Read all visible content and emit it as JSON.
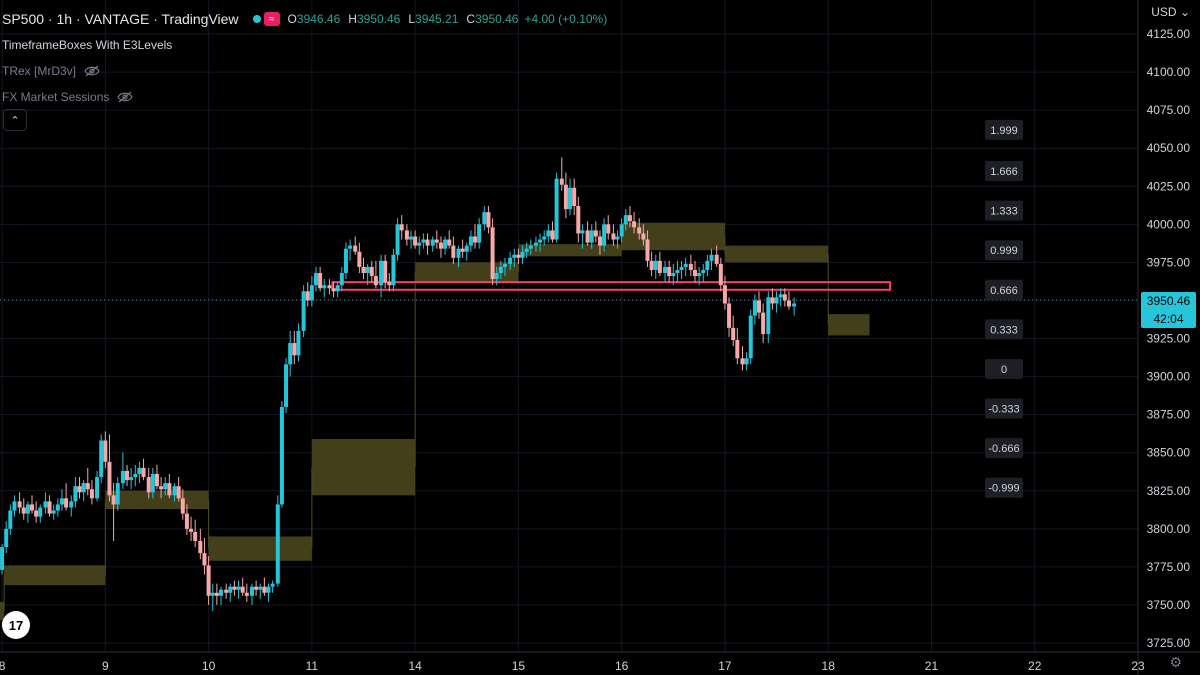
{
  "header": {
    "symbol": "SP500 · 1h · VANTAGE · TradingView",
    "open_label": "O",
    "open": "3946.46",
    "high_label": "H",
    "high": "3950.46",
    "low_label": "L",
    "low": "3945.21",
    "close_label": "C",
    "close": "3950.46",
    "change": "+4.00 (+0.10%)"
  },
  "indicators": [
    {
      "label": "TimeframeBoxes With E3Levels"
    },
    {
      "label": "TRex [MrD3v]"
    },
    {
      "label": "FX Market Sessions"
    }
  ],
  "currency": "USD",
  "collapse_glyph": "⌃",
  "settings_icon": "gear-icon",
  "logo_text": "17",
  "last_price": "3950.46",
  "countdown": "42:04",
  "colors": {
    "up": "#26c6da",
    "down": "#f7a8a8",
    "box": "#4f4a1e",
    "zone": "#ff3b6e",
    "grid": "#131722",
    "text": "#d1d4dc",
    "dim": "#787b86"
  },
  "chart_data": {
    "type": "candlestick",
    "y_axis_ticks": [
      "4125.00",
      "4100.00",
      "4075.00",
      "4050.00",
      "4025.00",
      "4000.00",
      "3975.00",
      "3950.00",
      "3925.00",
      "3900.00",
      "3875.00",
      "3850.00",
      "3825.00",
      "3800.00",
      "3775.00",
      "3750.00",
      "3725.00"
    ],
    "ylim": [
      3725,
      4125
    ],
    "x_axis_ticks": [
      {
        "label": "8",
        "x": 0
      },
      {
        "label": "9",
        "x": 1
      },
      {
        "label": "10",
        "x": 2
      },
      {
        "label": "11",
        "x": 3
      },
      {
        "label": "14",
        "x": 4
      },
      {
        "label": "15",
        "x": 5
      },
      {
        "label": "16",
        "x": 6
      },
      {
        "label": "17",
        "x": 7
      },
      {
        "label": "18",
        "x": 8
      },
      {
        "label": "21",
        "x": 9
      },
      {
        "label": "22",
        "x": 10
      },
      {
        "label": "23",
        "x": 11
      }
    ],
    "xlim": [
      -0.02,
      11.0
    ],
    "level_labels": [
      {
        "label": "1.999",
        "price": 4062
      },
      {
        "label": "1.666",
        "price": 4035
      },
      {
        "label": "1.333",
        "price": 4009
      },
      {
        "label": "0.999",
        "price": 3983
      },
      {
        "label": "0.666",
        "price": 3957
      },
      {
        "label": "0.333",
        "price": 3931
      },
      {
        "label": "0",
        "price": 3905
      },
      {
        "label": "-0.333",
        "price": 3879
      },
      {
        "label": "-0.666",
        "price": 3853
      },
      {
        "label": "-0.999",
        "price": 3827
      }
    ],
    "boxes": [
      {
        "x0": -0.02,
        "x1": 0.02,
        "top": 3752,
        "bottom": 3740
      },
      {
        "x0": 0.02,
        "x1": 1.0,
        "top": 3776,
        "bottom": 3763
      },
      {
        "x0": 1.0,
        "x1": 2.0,
        "top": 3825,
        "bottom": 3813
      },
      {
        "x0": 2.0,
        "x1": 3.0,
        "top": 3795,
        "bottom": 3779
      },
      {
        "x0": 3.0,
        "x1": 4.0,
        "top": 3859,
        "bottom": 3822
      },
      {
        "x0": 4.0,
        "x1": 5.0,
        "top": 3975,
        "bottom": 3962
      },
      {
        "x0": 5.0,
        "x1": 6.0,
        "top": 3987,
        "bottom": 3979
      },
      {
        "x0": 6.0,
        "x1": 7.0,
        "top": 4001,
        "bottom": 3983
      },
      {
        "x0": 7.0,
        "x1": 8.0,
        "top": 3986,
        "bottom": 3975
      },
      {
        "x0": 8.0,
        "x1": 8.4,
        "top": 3941,
        "bottom": 3927
      }
    ],
    "zone": {
      "x0": 3.2,
      "x1": 8.6,
      "top": 3962,
      "bottom": 3957
    },
    "last_price_value": 3950.46,
    "candles": [
      [
        0.0,
        3773,
        3790,
        3770,
        3788
      ],
      [
        0.04,
        3788,
        3805,
        3784,
        3800
      ],
      [
        0.08,
        3800,
        3816,
        3796,
        3812
      ],
      [
        0.12,
        3812,
        3822,
        3808,
        3818
      ],
      [
        0.17,
        3818,
        3824,
        3810,
        3814
      ],
      [
        0.21,
        3814,
        3820,
        3806,
        3810
      ],
      [
        0.25,
        3810,
        3818,
        3804,
        3816
      ],
      [
        0.29,
        3816,
        3822,
        3810,
        3812
      ],
      [
        0.33,
        3812,
        3818,
        3804,
        3808
      ],
      [
        0.37,
        3808,
        3816,
        3804,
        3814
      ],
      [
        0.42,
        3814,
        3824,
        3810,
        3818
      ],
      [
        0.46,
        3818,
        3822,
        3808,
        3810
      ],
      [
        0.5,
        3810,
        3816,
        3806,
        3812
      ],
      [
        0.54,
        3812,
        3820,
        3808,
        3816
      ],
      [
        0.58,
        3816,
        3826,
        3812,
        3820
      ],
      [
        0.62,
        3820,
        3830,
        3812,
        3814
      ],
      [
        0.67,
        3814,
        3822,
        3808,
        3818
      ],
      [
        0.71,
        3818,
        3834,
        3814,
        3828
      ],
      [
        0.75,
        3828,
        3834,
        3820,
        3824
      ],
      [
        0.79,
        3824,
        3832,
        3818,
        3830
      ],
      [
        0.83,
        3830,
        3840,
        3822,
        3826
      ],
      [
        0.87,
        3826,
        3832,
        3816,
        3820
      ],
      [
        0.92,
        3820,
        3838,
        3818,
        3834
      ],
      [
        0.96,
        3834,
        3862,
        3830,
        3858
      ],
      [
        1.0,
        3858,
        3864,
        3840,
        3844
      ],
      [
        1.04,
        3844,
        3862,
        3818,
        3822
      ],
      [
        1.08,
        3822,
        3830,
        3792,
        3816
      ],
      [
        1.12,
        3816,
        3834,
        3812,
        3830
      ],
      [
        1.17,
        3830,
        3850,
        3826,
        3838
      ],
      [
        1.21,
        3838,
        3842,
        3828,
        3832
      ],
      [
        1.25,
        3832,
        3840,
        3826,
        3834
      ],
      [
        1.29,
        3834,
        3842,
        3828,
        3836
      ],
      [
        1.33,
        3836,
        3844,
        3830,
        3840
      ],
      [
        1.37,
        3840,
        3846,
        3832,
        3834
      ],
      [
        1.42,
        3834,
        3840,
        3820,
        3824
      ],
      [
        1.46,
        3824,
        3840,
        3820,
        3836
      ],
      [
        1.5,
        3836,
        3842,
        3826,
        3828
      ],
      [
        1.54,
        3828,
        3834,
        3820,
        3826
      ],
      [
        1.58,
        3826,
        3834,
        3822,
        3830
      ],
      [
        1.62,
        3830,
        3836,
        3820,
        3822
      ],
      [
        1.67,
        3822,
        3830,
        3818,
        3828
      ],
      [
        1.71,
        3828,
        3834,
        3818,
        3820
      ],
      [
        1.75,
        3820,
        3826,
        3806,
        3810
      ],
      [
        1.79,
        3810,
        3816,
        3796,
        3800
      ],
      [
        1.83,
        3800,
        3808,
        3792,
        3798
      ],
      [
        1.87,
        3798,
        3806,
        3788,
        3792
      ],
      [
        1.92,
        3792,
        3800,
        3780,
        3784
      ],
      [
        1.96,
        3784,
        3794,
        3770,
        3776
      ],
      [
        2.0,
        3776,
        3782,
        3750,
        3756
      ],
      [
        2.04,
        3756,
        3764,
        3746,
        3758
      ],
      [
        2.08,
        3758,
        3764,
        3750,
        3756
      ],
      [
        2.12,
        3756,
        3762,
        3750,
        3760
      ],
      [
        2.17,
        3760,
        3764,
        3754,
        3758
      ],
      [
        2.21,
        3758,
        3764,
        3752,
        3762
      ],
      [
        2.25,
        3762,
        3766,
        3756,
        3760
      ],
      [
        2.29,
        3760,
        3766,
        3754,
        3762
      ],
      [
        2.33,
        3762,
        3768,
        3756,
        3758
      ],
      [
        2.37,
        3758,
        3764,
        3752,
        3756
      ],
      [
        2.42,
        3756,
        3764,
        3750,
        3762
      ],
      [
        2.46,
        3762,
        3766,
        3756,
        3760
      ],
      [
        2.5,
        3760,
        3764,
        3754,
        3762
      ],
      [
        2.54,
        3762,
        3768,
        3756,
        3758
      ],
      [
        2.58,
        3758,
        3764,
        3752,
        3762
      ],
      [
        2.62,
        3762,
        3766,
        3758,
        3764
      ],
      [
        2.67,
        3764,
        3822,
        3762,
        3816
      ],
      [
        2.71,
        3816,
        3884,
        3814,
        3880
      ],
      [
        2.75,
        3880,
        3912,
        3876,
        3908
      ],
      [
        2.79,
        3908,
        3930,
        3900,
        3922
      ],
      [
        2.83,
        3922,
        3930,
        3908,
        3914
      ],
      [
        2.87,
        3914,
        3935,
        3910,
        3930
      ],
      [
        2.92,
        3930,
        3960,
        3926,
        3956
      ],
      [
        2.96,
        3956,
        3962,
        3946,
        3950
      ],
      [
        3.0,
        3950,
        3966,
        3946,
        3960
      ],
      [
        3.04,
        3960,
        3972,
        3956,
        3968
      ],
      [
        3.08,
        3968,
        3972,
        3956,
        3958
      ],
      [
        3.12,
        3958,
        3964,
        3952,
        3960
      ],
      [
        3.17,
        3960,
        3964,
        3954,
        3958
      ],
      [
        3.21,
        3958,
        3962,
        3952,
        3956
      ],
      [
        3.25,
        3956,
        3962,
        3952,
        3960
      ],
      [
        3.29,
        3960,
        3972,
        3956,
        3968
      ],
      [
        3.33,
        3968,
        3988,
        3964,
        3984
      ],
      [
        3.37,
        3984,
        3990,
        3976,
        3986
      ],
      [
        3.42,
        3986,
        3992,
        3980,
        3982
      ],
      [
        3.46,
        3982,
        3988,
        3968,
        3972
      ],
      [
        3.5,
        3972,
        3978,
        3964,
        3968
      ],
      [
        3.54,
        3968,
        3974,
        3960,
        3972
      ],
      [
        3.58,
        3972,
        3976,
        3962,
        3966
      ],
      [
        3.62,
        3966,
        3976,
        3958,
        3960
      ],
      [
        3.67,
        3960,
        3980,
        3952,
        3976
      ],
      [
        3.71,
        3976,
        3980,
        3958,
        3962
      ],
      [
        3.75,
        3962,
        3968,
        3956,
        3960
      ],
      [
        3.79,
        3960,
        3984,
        3956,
        3980
      ],
      [
        3.83,
        3980,
        4004,
        3976,
        4000
      ],
      [
        3.87,
        4000,
        4006,
        3990,
        3996
      ],
      [
        3.92,
        3996,
        4000,
        3986,
        3990
      ],
      [
        3.96,
        3990,
        3996,
        3984,
        3992
      ],
      [
        4.0,
        3992,
        3996,
        3984,
        3986
      ],
      [
        4.04,
        3986,
        3992,
        3980,
        3988
      ],
      [
        4.08,
        3988,
        3994,
        3984,
        3990
      ],
      [
        4.12,
        3990,
        3994,
        3980,
        3986
      ],
      [
        4.17,
        3986,
        3992,
        3982,
        3990
      ],
      [
        4.21,
        3990,
        3996,
        3984,
        3988
      ],
      [
        4.25,
        3988,
        3992,
        3978,
        3984
      ],
      [
        4.29,
        3984,
        3992,
        3980,
        3990
      ],
      [
        4.33,
        3990,
        3996,
        3984,
        3986
      ],
      [
        4.37,
        3986,
        3992,
        3974,
        3978
      ],
      [
        4.42,
        3978,
        3986,
        3972,
        3984
      ],
      [
        4.46,
        3984,
        3990,
        3978,
        3982
      ],
      [
        4.5,
        3982,
        3988,
        3976,
        3986
      ],
      [
        4.54,
        3986,
        3996,
        3982,
        3992
      ],
      [
        4.58,
        3992,
        4000,
        3984,
        3988
      ],
      [
        4.62,
        3988,
        4004,
        3984,
        4000
      ],
      [
        4.67,
        4000,
        4012,
        3996,
        4008
      ],
      [
        4.71,
        4008,
        4012,
        3994,
        3998
      ],
      [
        4.75,
        3998,
        4004,
        3960,
        3964
      ],
      [
        4.79,
        3964,
        3972,
        3960,
        3968
      ],
      [
        4.83,
        3968,
        3976,
        3964,
        3972
      ],
      [
        4.87,
        3972,
        3978,
        3966,
        3974
      ],
      [
        4.92,
        3974,
        3982,
        3970,
        3978
      ],
      [
        4.96,
        3978,
        3984,
        3972,
        3980
      ],
      [
        5.0,
        3980,
        3984,
        3974,
        3978
      ],
      [
        5.04,
        3978,
        3986,
        3974,
        3982
      ],
      [
        5.08,
        3982,
        3988,
        3978,
        3984
      ],
      [
        5.12,
        3984,
        3990,
        3980,
        3986
      ],
      [
        5.17,
        3986,
        3992,
        3982,
        3988
      ],
      [
        5.21,
        3988,
        3994,
        3982,
        3990
      ],
      [
        5.25,
        3990,
        3996,
        3986,
        3992
      ],
      [
        5.29,
        3992,
        4000,
        3988,
        3996
      ],
      [
        5.33,
        3996,
        4002,
        3988,
        3990
      ],
      [
        5.37,
        3990,
        4034,
        3988,
        4030
      ],
      [
        5.42,
        4030,
        4044,
        4022,
        4026
      ],
      [
        5.46,
        4026,
        4034,
        4004,
        4010
      ],
      [
        5.5,
        4010,
        4030,
        4006,
        4024
      ],
      [
        5.54,
        4024,
        4030,
        4006,
        4012
      ],
      [
        5.58,
        4012,
        4018,
        3988,
        3994
      ],
      [
        5.62,
        3994,
        4000,
        3984,
        3996
      ],
      [
        5.67,
        3996,
        4002,
        3986,
        3988
      ],
      [
        5.71,
        3988,
        4000,
        3984,
        3996
      ],
      [
        5.75,
        3996,
        4002,
        3988,
        3992
      ],
      [
        5.79,
        3992,
        3996,
        3980,
        3986
      ],
      [
        5.83,
        3986,
        4004,
        3982,
        4000
      ],
      [
        5.87,
        4000,
        4006,
        3990,
        3994
      ],
      [
        5.92,
        3994,
        4000,
        3986,
        3990
      ],
      [
        5.96,
        3990,
        3996,
        3984,
        3992
      ],
      [
        6.0,
        3992,
        4004,
        3988,
        4000
      ],
      [
        6.04,
        4000,
        4010,
        3996,
        4006
      ],
      [
        6.08,
        4006,
        4012,
        3998,
        4002
      ],
      [
        6.12,
        4002,
        4008,
        3994,
        3998
      ],
      [
        6.17,
        3998,
        4004,
        3990,
        3994
      ],
      [
        6.21,
        3994,
        4000,
        3986,
        3990
      ],
      [
        6.25,
        3990,
        3996,
        3972,
        3976
      ],
      [
        6.29,
        3976,
        3982,
        3966,
        3970
      ],
      [
        6.33,
        3970,
        3980,
        3964,
        3976
      ],
      [
        6.37,
        3976,
        3982,
        3966,
        3968
      ],
      [
        6.42,
        3968,
        3976,
        3962,
        3972
      ],
      [
        6.46,
        3972,
        3976,
        3962,
        3966
      ],
      [
        6.5,
        3966,
        3974,
        3960,
        3968
      ],
      [
        6.54,
        3968,
        3976,
        3962,
        3970
      ],
      [
        6.58,
        3970,
        3976,
        3964,
        3972
      ],
      [
        6.62,
        3972,
        3978,
        3966,
        3974
      ],
      [
        6.67,
        3974,
        3980,
        3966,
        3970
      ],
      [
        6.71,
        3970,
        3976,
        3962,
        3966
      ],
      [
        6.75,
        3966,
        3972,
        3960,
        3968
      ],
      [
        6.79,
        3968,
        3974,
        3962,
        3970
      ],
      [
        6.83,
        3970,
        3980,
        3966,
        3976
      ],
      [
        6.87,
        3976,
        3984,
        3970,
        3980
      ],
      [
        6.92,
        3980,
        3986,
        3972,
        3974
      ],
      [
        6.96,
        3974,
        3978,
        3956,
        3960
      ],
      [
        7.0,
        3960,
        3966,
        3944,
        3948
      ],
      [
        7.04,
        3948,
        3952,
        3926,
        3932
      ],
      [
        7.08,
        3932,
        3940,
        3920,
        3924
      ],
      [
        7.12,
        3924,
        3932,
        3908,
        3912
      ],
      [
        7.17,
        3912,
        3920,
        3904,
        3908
      ],
      [
        7.21,
        3908,
        3916,
        3904,
        3912
      ],
      [
        7.25,
        3912,
        3944,
        3908,
        3940
      ],
      [
        7.29,
        3940,
        3954,
        3934,
        3950
      ],
      [
        7.33,
        3950,
        3956,
        3938,
        3942
      ],
      [
        7.37,
        3942,
        3948,
        3922,
        3928
      ],
      [
        7.42,
        3928,
        3956,
        3922,
        3952
      ],
      [
        7.46,
        3952,
        3958,
        3944,
        3948
      ],
      [
        7.5,
        3948,
        3956,
        3942,
        3952
      ],
      [
        7.54,
        3952,
        3958,
        3946,
        3954
      ],
      [
        7.58,
        3954,
        3958,
        3946,
        3950
      ],
      [
        7.62,
        3950,
        3956,
        3944,
        3946
      ],
      [
        7.67,
        3946,
        3952,
        3940,
        3948
      ]
    ]
  }
}
